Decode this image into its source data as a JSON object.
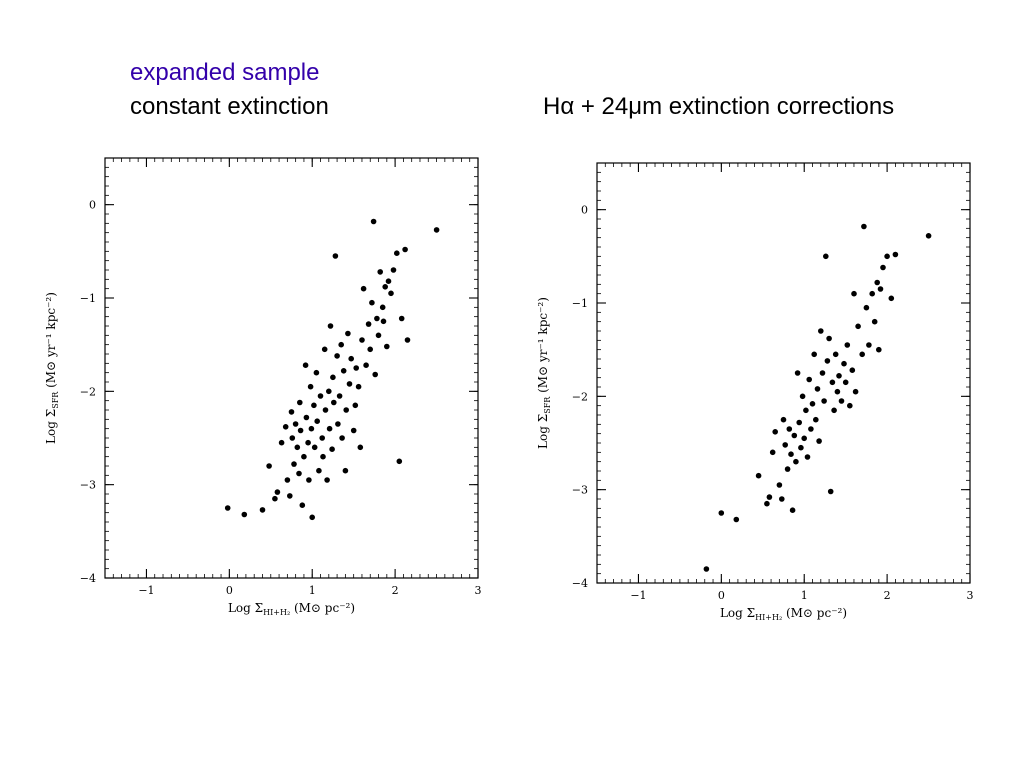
{
  "headings": {
    "left_line1": "expanded sample",
    "left_line2": "constant extinction",
    "right": "Hα + 24μm extinction corrections",
    "left_line1_color": "#3300aa"
  },
  "chart_data": [
    {
      "type": "scatter",
      "xlabel": "Log Σ_{HI+H2} (M⊙ pc⁻²)",
      "ylabel": "Log Σ_SFR (M⊙ yr⁻¹ kpc⁻²)",
      "xlim": [
        -1.5,
        3
      ],
      "ylim": [
        -4,
        0.5
      ],
      "xticks": [
        -1,
        0,
        1,
        2,
        3
      ],
      "yticks": [
        0,
        -1,
        -2,
        -3,
        -4
      ],
      "grid": false,
      "marker_color": "#000000",
      "points": [
        [
          -0.02,
          -3.25
        ],
        [
          0.18,
          -3.32
        ],
        [
          0.4,
          -3.27
        ],
        [
          0.48,
          -2.8
        ],
        [
          0.55,
          -3.15
        ],
        [
          0.58,
          -3.08
        ],
        [
          0.63,
          -2.55
        ],
        [
          0.68,
          -2.38
        ],
        [
          0.7,
          -2.95
        ],
        [
          0.73,
          -3.12
        ],
        [
          0.75,
          -2.22
        ],
        [
          0.76,
          -2.5
        ],
        [
          0.78,
          -2.78
        ],
        [
          0.8,
          -2.35
        ],
        [
          0.82,
          -2.6
        ],
        [
          0.84,
          -2.88
        ],
        [
          0.85,
          -2.12
        ],
        [
          0.86,
          -2.42
        ],
        [
          0.88,
          -3.22
        ],
        [
          0.9,
          -2.7
        ],
        [
          0.92,
          -1.72
        ],
        [
          0.93,
          -2.28
        ],
        [
          0.95,
          -2.55
        ],
        [
          0.96,
          -2.95
        ],
        [
          0.98,
          -1.95
        ],
        [
          0.99,
          -2.4
        ],
        [
          1.0,
          -3.35
        ],
        [
          1.02,
          -2.15
        ],
        [
          1.03,
          -2.6
        ],
        [
          1.05,
          -1.8
        ],
        [
          1.06,
          -2.32
        ],
        [
          1.08,
          -2.85
        ],
        [
          1.1,
          -2.05
        ],
        [
          1.12,
          -2.5
        ],
        [
          1.13,
          -2.7
        ],
        [
          1.15,
          -1.55
        ],
        [
          1.16,
          -2.2
        ],
        [
          1.18,
          -2.95
        ],
        [
          1.2,
          -2.0
        ],
        [
          1.21,
          -2.4
        ],
        [
          1.22,
          -1.3
        ],
        [
          1.24,
          -2.62
        ],
        [
          1.25,
          -1.85
        ],
        [
          1.26,
          -2.12
        ],
        [
          1.28,
          -0.55
        ],
        [
          1.3,
          -1.62
        ],
        [
          1.31,
          -2.35
        ],
        [
          1.33,
          -2.05
        ],
        [
          1.35,
          -1.5
        ],
        [
          1.36,
          -2.5
        ],
        [
          1.38,
          -1.78
        ],
        [
          1.4,
          -2.85
        ],
        [
          1.41,
          -2.2
        ],
        [
          1.43,
          -1.38
        ],
        [
          1.45,
          -1.92
        ],
        [
          1.47,
          -1.65
        ],
        [
          1.5,
          -2.42
        ],
        [
          1.52,
          -2.15
        ],
        [
          1.53,
          -1.75
        ],
        [
          1.56,
          -1.95
        ],
        [
          1.58,
          -2.6
        ],
        [
          1.6,
          -1.45
        ],
        [
          1.62,
          -0.9
        ],
        [
          1.65,
          -1.72
        ],
        [
          1.68,
          -1.28
        ],
        [
          1.7,
          -1.55
        ],
        [
          1.72,
          -1.05
        ],
        [
          1.74,
          -0.18
        ],
        [
          1.76,
          -1.82
        ],
        [
          1.78,
          -1.22
        ],
        [
          1.8,
          -1.4
        ],
        [
          1.82,
          -0.72
        ],
        [
          1.85,
          -1.1
        ],
        [
          1.86,
          -1.25
        ],
        [
          1.88,
          -0.88
        ],
        [
          1.9,
          -1.52
        ],
        [
          1.92,
          -0.82
        ],
        [
          1.95,
          -0.95
        ],
        [
          1.98,
          -0.7
        ],
        [
          2.02,
          -0.52
        ],
        [
          2.05,
          -2.75
        ],
        [
          2.08,
          -1.22
        ],
        [
          2.12,
          -0.48
        ],
        [
          2.15,
          -1.45
        ],
        [
          2.5,
          -0.27
        ]
      ]
    },
    {
      "type": "scatter",
      "xlabel": "Log Σ_{HI+H2} (M⊙ pc⁻²)",
      "ylabel": "Log Σ_SFR (M⊙ yr⁻¹ kpc⁻²)",
      "xlim": [
        -1.5,
        3
      ],
      "ylim": [
        -4,
        0.5
      ],
      "xticks": [
        -1,
        0,
        1,
        2,
        3
      ],
      "yticks": [
        0,
        -1,
        -2,
        -3,
        -4
      ],
      "grid": false,
      "marker_color": "#000000",
      "points": [
        [
          -0.18,
          -3.85
        ],
        [
          0.0,
          -3.25
        ],
        [
          0.18,
          -3.32
        ],
        [
          0.45,
          -2.85
        ],
        [
          0.55,
          -3.15
        ],
        [
          0.58,
          -3.08
        ],
        [
          0.62,
          -2.6
        ],
        [
          0.65,
          -2.38
        ],
        [
          0.7,
          -2.95
        ],
        [
          0.73,
          -3.1
        ],
        [
          0.75,
          -2.25
        ],
        [
          0.77,
          -2.52
        ],
        [
          0.8,
          -2.78
        ],
        [
          0.82,
          -2.35
        ],
        [
          0.84,
          -2.62
        ],
        [
          0.86,
          -3.22
        ],
        [
          0.88,
          -2.42
        ],
        [
          0.9,
          -2.7
        ],
        [
          0.92,
          -1.75
        ],
        [
          0.94,
          -2.28
        ],
        [
          0.96,
          -2.55
        ],
        [
          0.98,
          -2.0
        ],
        [
          1.0,
          -2.45
        ],
        [
          1.02,
          -2.15
        ],
        [
          1.04,
          -2.65
        ],
        [
          1.06,
          -1.82
        ],
        [
          1.08,
          -2.35
        ],
        [
          1.1,
          -2.08
        ],
        [
          1.12,
          -1.55
        ],
        [
          1.14,
          -2.25
        ],
        [
          1.16,
          -1.92
        ],
        [
          1.18,
          -2.48
        ],
        [
          1.2,
          -1.3
        ],
        [
          1.22,
          -1.75
        ],
        [
          1.24,
          -2.05
        ],
        [
          1.26,
          -0.5
        ],
        [
          1.28,
          -1.62
        ],
        [
          1.3,
          -1.38
        ],
        [
          1.32,
          -3.02
        ],
        [
          1.34,
          -1.85
        ],
        [
          1.36,
          -2.15
        ],
        [
          1.38,
          -1.55
        ],
        [
          1.4,
          -1.95
        ],
        [
          1.42,
          -1.78
        ],
        [
          1.45,
          -2.05
        ],
        [
          1.48,
          -1.65
        ],
        [
          1.5,
          -1.85
        ],
        [
          1.52,
          -1.45
        ],
        [
          1.55,
          -2.1
        ],
        [
          1.58,
          -1.72
        ],
        [
          1.6,
          -0.9
        ],
        [
          1.62,
          -1.95
        ],
        [
          1.65,
          -1.25
        ],
        [
          1.7,
          -1.55
        ],
        [
          1.72,
          -0.18
        ],
        [
          1.75,
          -1.05
        ],
        [
          1.78,
          -1.45
        ],
        [
          1.82,
          -0.9
        ],
        [
          1.85,
          -1.2
        ],
        [
          1.88,
          -0.78
        ],
        [
          1.9,
          -1.5
        ],
        [
          1.92,
          -0.85
        ],
        [
          1.95,
          -0.62
        ],
        [
          2.0,
          -0.5
        ],
        [
          2.05,
          -0.95
        ],
        [
          2.1,
          -0.48
        ],
        [
          2.5,
          -0.28
        ]
      ]
    }
  ]
}
